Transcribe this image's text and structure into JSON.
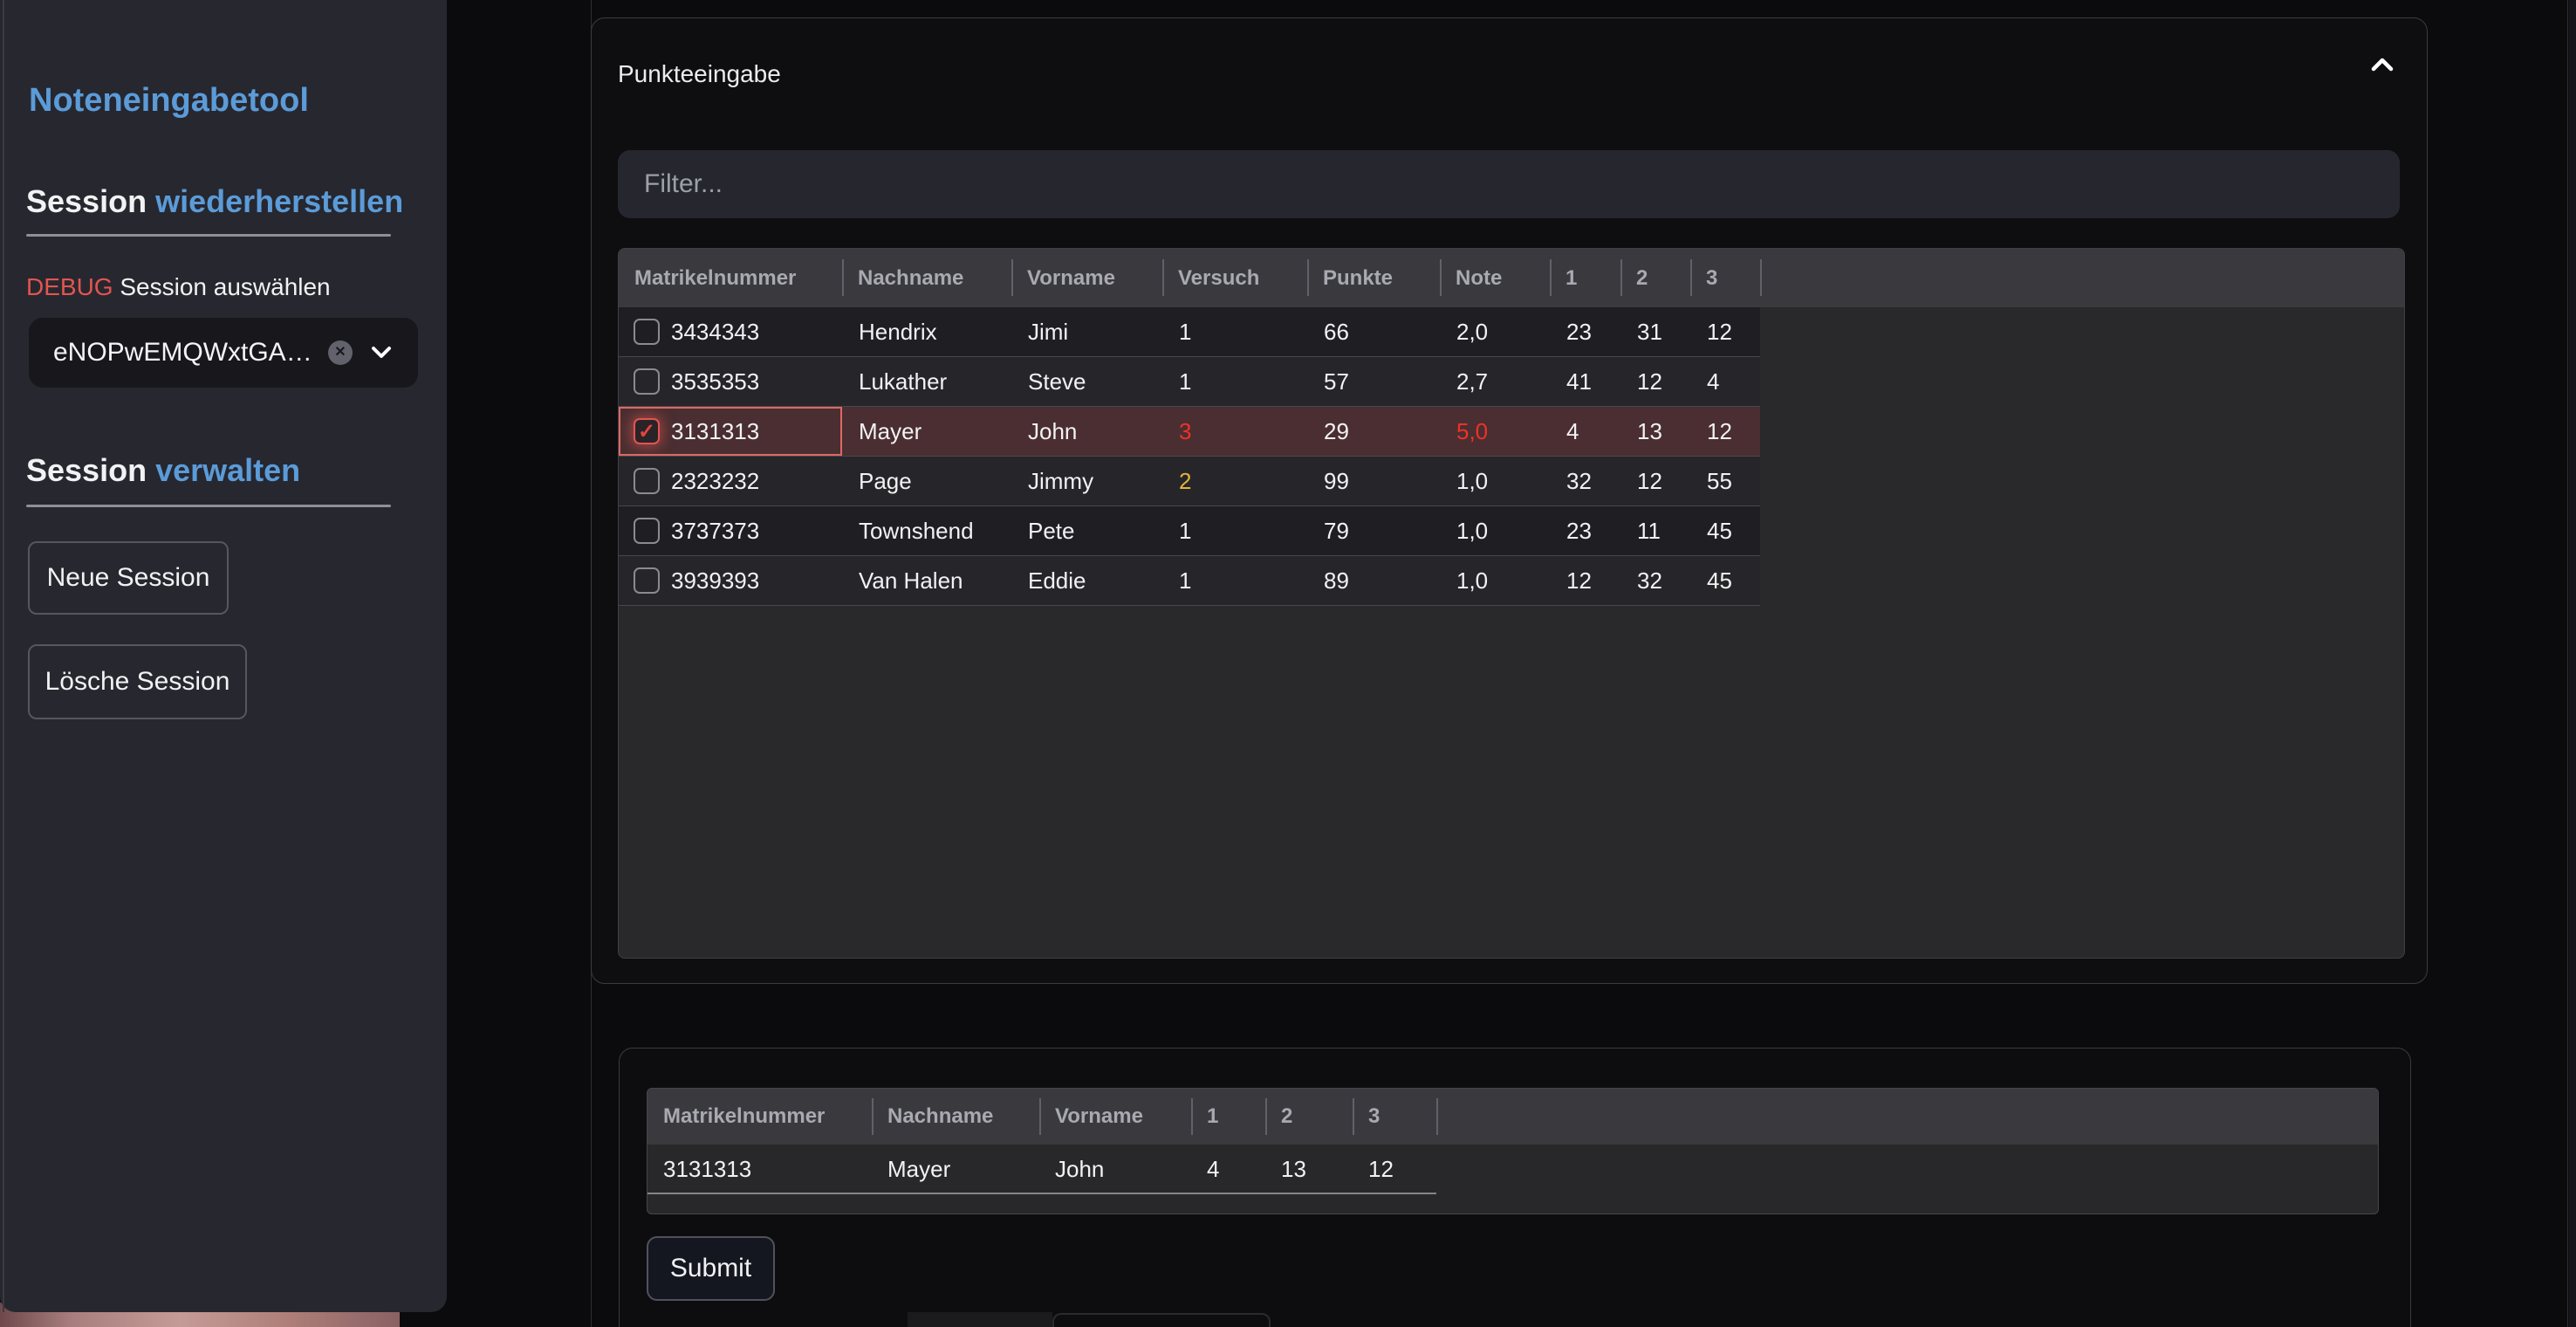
{
  "sidebar": {
    "title": "Noteneingabetool",
    "restore_heading": {
      "prefix": "Session ",
      "highlight": "wiederherstellen"
    },
    "debug_badge": "DEBUG",
    "select_label": " Session auswählen",
    "session_select": {
      "value": "eNOPwEMQWxtGA…"
    },
    "manage_heading": {
      "prefix": "Session ",
      "highlight": "verwalten"
    },
    "new_session_button": "Neue Session",
    "delete_session_button": "Lösche Session"
  },
  "main": {
    "panel": {
      "title": "Punkteeingabe",
      "filter": {
        "placeholder": "Filter..."
      },
      "table": {
        "columns": [
          "Matrikelnummer",
          "Nachname",
          "Vorname",
          "Versuch",
          "Punkte",
          "Note",
          "1",
          "2",
          "3"
        ],
        "rows": [
          {
            "checked": false,
            "error": false,
            "cells": [
              "3434343",
              "Hendrix",
              "Jimi",
              "1",
              "66",
              "2,0",
              "23",
              "31",
              "12"
            ],
            "cell_colors": {}
          },
          {
            "checked": false,
            "error": false,
            "cells": [
              "3535353",
              "Lukather",
              "Steve",
              "1",
              "57",
              "2,7",
              "41",
              "12",
              "4"
            ],
            "cell_colors": {}
          },
          {
            "checked": true,
            "error": true,
            "cells": [
              "3131313",
              "Mayer",
              "John",
              "3",
              "29",
              "5,0",
              "4",
              "13",
              "12"
            ],
            "cell_colors": {
              "3": "red",
              "5": "red"
            }
          },
          {
            "checked": false,
            "error": false,
            "cells": [
              "2323232",
              "Page",
              "Jimmy",
              "2",
              "99",
              "1,0",
              "32",
              "12",
              "55"
            ],
            "cell_colors": {
              "3": "yellow"
            }
          },
          {
            "checked": false,
            "error": false,
            "cells": [
              "3737373",
              "Townshend",
              "Pete",
              "1",
              "79",
              "1,0",
              "23",
              "11",
              "45"
            ],
            "cell_colors": {}
          },
          {
            "checked": false,
            "error": false,
            "cells": [
              "3939393",
              "Van Halen",
              "Eddie",
              "1",
              "89",
              "1,0",
              "12",
              "32",
              "45"
            ],
            "cell_colors": {}
          }
        ]
      }
    },
    "selection_card": {
      "table": {
        "columns": [
          "Matrikelnummer",
          "Nachname",
          "Vorname",
          "1",
          "2",
          "3"
        ],
        "rows": [
          {
            "cells": [
              "3131313",
              "Mayer",
              "John",
              "4",
              "13",
              "12"
            ]
          }
        ]
      },
      "submit_button": "Submit"
    }
  },
  "colors": {
    "accent_blue": "#5b9bd8",
    "debug_red": "#e25550",
    "error_text_red": "#ee3227",
    "warning_yellow": "#e3b33c",
    "error_row_bg": "#4a2e31",
    "error_outline": "#dc6a64"
  }
}
